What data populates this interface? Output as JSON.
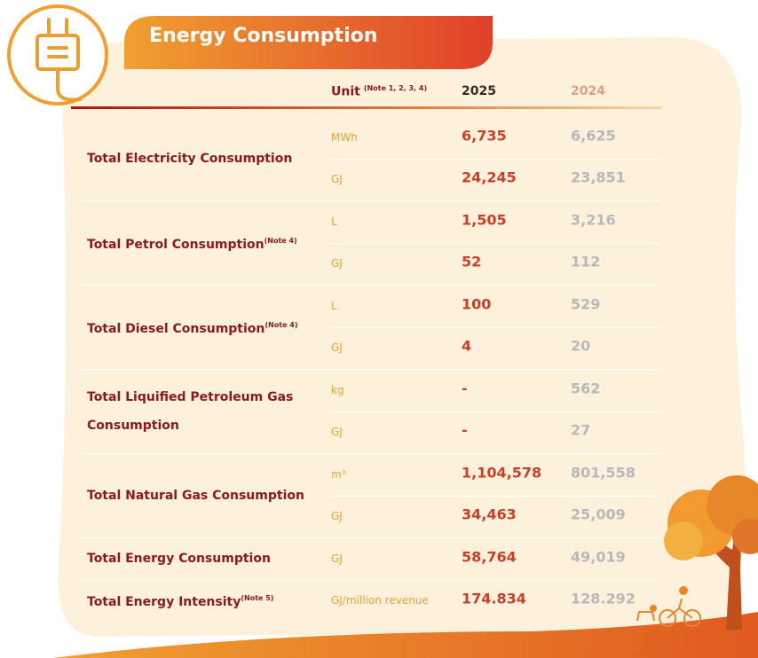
{
  "header": {
    "title": "Energy Consumption"
  },
  "table": {
    "columns": {
      "unit": "Unit",
      "unit_note": "(Note 1, 2, 3, 4)",
      "current": "2025",
      "previous": "2024"
    },
    "groups": [
      {
        "label": "Total Electricity Consumption",
        "rows": [
          [
            "MWh",
            "6,735",
            "6,625"
          ],
          [
            "GJ",
            "24,245",
            "23,851"
          ]
        ]
      },
      {
        "label": "Total Petrol Consumption",
        "note": "(Note 4)",
        "rows": [
          [
            "L",
            "1,505",
            "3,216"
          ],
          [
            "GJ",
            "52",
            "112"
          ]
        ]
      },
      {
        "label": "Total Diesel Consumption",
        "note": "(Note 4)",
        "rows": [
          [
            "L",
            "100",
            "529"
          ],
          [
            "GJ",
            "4",
            "20"
          ]
        ]
      },
      {
        "label": "Total Liquified Petroleum Gas Consumption",
        "rows": [
          [
            "kg",
            "-",
            "562"
          ],
          [
            "GJ",
            "-",
            "27"
          ]
        ]
      },
      {
        "label": "Total Natural Gas Consumption",
        "rows": [
          [
            "m³",
            "1,104,578",
            "801,558"
          ],
          [
            "GJ",
            "34,463",
            "25,009"
          ]
        ]
      },
      {
        "label": "Total Energy Consumption",
        "rows": [
          [
            "GJ",
            "58,764",
            "49,019"
          ]
        ]
      },
      {
        "label": "Total Energy Intensity",
        "note": "(Note 5)",
        "rows": [
          [
            "GJ/million revenue",
            "174.834",
            "128.292"
          ]
        ]
      }
    ]
  }
}
